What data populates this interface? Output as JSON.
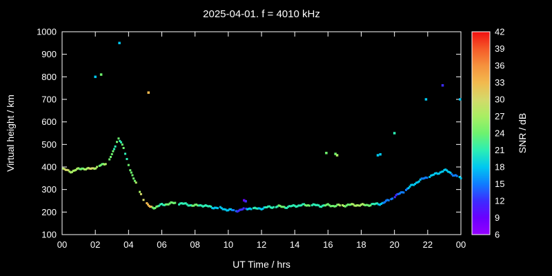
{
  "colors": {
    "background": "#000000",
    "frame": "#ffffff",
    "text": "#ffffff"
  },
  "chart_data": {
    "type": "scatter",
    "title": "2025-04-01. f = 4010 kHz",
    "xlabel": "UT Time / hrs",
    "ylabel": "Virtual height / km",
    "cblabel": "SNR / dB",
    "xlim": [
      0,
      24
    ],
    "ylim": [
      100,
      1000
    ],
    "cblim": [
      6,
      42
    ],
    "xtick_values": [
      0,
      2,
      4,
      6,
      8,
      10,
      12,
      14,
      16,
      18,
      20,
      22,
      24
    ],
    "xtick_labels": [
      "00",
      "02",
      "04",
      "06",
      "08",
      "10",
      "12",
      "14",
      "16",
      "18",
      "20",
      "22",
      "00"
    ],
    "ytick_values": [
      100,
      200,
      300,
      400,
      500,
      600,
      700,
      800,
      900,
      1000
    ],
    "cbtick_values": [
      6,
      9,
      12,
      15,
      18,
      21,
      24,
      27,
      30,
      33,
      36,
      39,
      42
    ],
    "colormap": [
      {
        "v": 6,
        "c": "#9400ff"
      },
      {
        "v": 9,
        "c": "#6a00ff"
      },
      {
        "v": 12,
        "c": "#3c2cff"
      },
      {
        "v": 15,
        "c": "#0f7dff"
      },
      {
        "v": 18,
        "c": "#00c8f0"
      },
      {
        "v": 21,
        "c": "#2ceeb4"
      },
      {
        "v": 24,
        "c": "#6ef26e"
      },
      {
        "v": 27,
        "c": "#a9ee63"
      },
      {
        "v": 30,
        "c": "#d4d96a"
      },
      {
        "v": 33,
        "c": "#f2b94e"
      },
      {
        "v": 36,
        "c": "#f5913d"
      },
      {
        "v": 39,
        "c": "#f55a28"
      },
      {
        "v": 42,
        "c": "#f01111"
      }
    ],
    "main_trace": [
      [
        0.0,
        390,
        27
      ],
      [
        0.3,
        385,
        30
      ],
      [
        0.6,
        380,
        27
      ],
      [
        0.9,
        388,
        27
      ],
      [
        1.2,
        395,
        24
      ],
      [
        1.5,
        390,
        27
      ],
      [
        1.8,
        393,
        30
      ],
      [
        2.1,
        400,
        27
      ],
      [
        2.4,
        408,
        24
      ],
      [
        2.7,
        420,
        27
      ],
      [
        3.0,
        452,
        24
      ],
      [
        3.2,
        492,
        21
      ],
      [
        3.4,
        530,
        24
      ],
      [
        3.55,
        510,
        21
      ],
      [
        3.7,
        482,
        24
      ],
      [
        3.9,
        432,
        21
      ],
      [
        4.1,
        390,
        24
      ],
      [
        4.3,
        350,
        24
      ],
      [
        4.6,
        303,
        27
      ],
      [
        4.9,
        258,
        30
      ],
      [
        5.1,
        235,
        33
      ],
      [
        5.3,
        222,
        33
      ],
      [
        5.6,
        221,
        24
      ],
      [
        6.0,
        232,
        21
      ],
      [
        6.4,
        237,
        24
      ],
      [
        6.8,
        240,
        24
      ],
      [
        7.2,
        237,
        21
      ],
      [
        7.6,
        233,
        21
      ],
      [
        8.0,
        228,
        24
      ],
      [
        8.4,
        231,
        21
      ],
      [
        8.8,
        224,
        21
      ],
      [
        9.2,
        220,
        18
      ],
      [
        9.6,
        216,
        18
      ],
      [
        10.0,
        210,
        18
      ],
      [
        10.4,
        206,
        15
      ],
      [
        10.7,
        209,
        12
      ],
      [
        11.0,
        214,
        12
      ],
      [
        11.3,
        217,
        18
      ],
      [
        11.6,
        214,
        21
      ],
      [
        12.0,
        217,
        18
      ],
      [
        12.4,
        221,
        21
      ],
      [
        12.8,
        224,
        21
      ],
      [
        13.2,
        224,
        24
      ],
      [
        13.6,
        222,
        21
      ],
      [
        14.0,
        228,
        21
      ],
      [
        14.4,
        230,
        21
      ],
      [
        14.8,
        231,
        24
      ],
      [
        15.2,
        230,
        21
      ],
      [
        15.6,
        228,
        21
      ],
      [
        16.0,
        230,
        24
      ],
      [
        16.4,
        228,
        24
      ],
      [
        16.8,
        229,
        27
      ],
      [
        17.2,
        231,
        24
      ],
      [
        17.6,
        232,
        27
      ],
      [
        18.0,
        230,
        27
      ],
      [
        18.4,
        232,
        24
      ],
      [
        18.8,
        234,
        21
      ],
      [
        19.2,
        238,
        18
      ],
      [
        19.5,
        246,
        15
      ],
      [
        19.8,
        258,
        15
      ],
      [
        20.1,
        272,
        12
      ],
      [
        20.4,
        285,
        15
      ],
      [
        20.7,
        298,
        15
      ],
      [
        21.0,
        315,
        18
      ],
      [
        21.4,
        335,
        18
      ],
      [
        21.8,
        350,
        15
      ],
      [
        22.2,
        360,
        18
      ],
      [
        22.6,
        372,
        18
      ],
      [
        23.0,
        385,
        18
      ],
      [
        23.3,
        378,
        18
      ],
      [
        23.6,
        363,
        15
      ],
      [
        24.0,
        350,
        18
      ]
    ],
    "isolated_points": [
      [
        2.0,
        800,
        18
      ],
      [
        2.35,
        810,
        24
      ],
      [
        3.45,
        950,
        18
      ],
      [
        5.2,
        730,
        33
      ],
      [
        10.95,
        252,
        9
      ],
      [
        11.05,
        248,
        12
      ],
      [
        15.9,
        462,
        24
      ],
      [
        16.45,
        458,
        24
      ],
      [
        16.55,
        452,
        27
      ],
      [
        19.0,
        452,
        18
      ],
      [
        19.15,
        456,
        18
      ],
      [
        20.0,
        550,
        21
      ],
      [
        21.9,
        700,
        18
      ],
      [
        22.9,
        762,
        12
      ],
      [
        23.95,
        700,
        18
      ]
    ]
  }
}
